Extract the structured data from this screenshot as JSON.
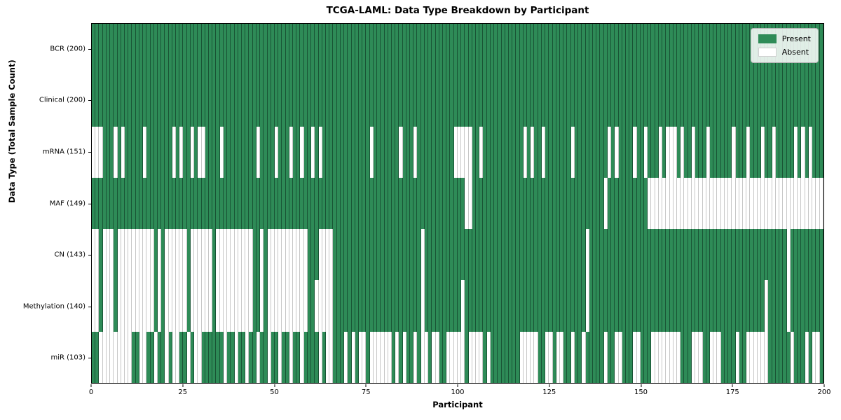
{
  "title": "TCGA-LAML: Data Type Breakdown by Participant",
  "x_axis": {
    "label": "Participant",
    "min": 0,
    "max": 200,
    "ticks": [
      0,
      25,
      50,
      75,
      100,
      125,
      150,
      175,
      200
    ]
  },
  "y_axis": {
    "label": "Data Type (Total Sample Count)"
  },
  "legend": {
    "position": "upper right",
    "items": [
      {
        "label": "Present",
        "color": "#2e8b57"
      },
      {
        "label": "Absent",
        "color": "#ffffff"
      }
    ]
  },
  "colors": {
    "present": "#2e8b57",
    "absent": "#ffffff",
    "cell_edge_on_green": "rgba(10,40,25,0.55)",
    "cell_edge_on_white": "rgba(0,0,0,0.22)",
    "row_separator": "#000000",
    "plot_border": "#000000"
  },
  "chart_data": {
    "type": "heatmap",
    "value_meaning": {
      "1": "Present",
      "0": "Absent"
    },
    "n_participants": 200,
    "x_range": [
      0,
      200
    ],
    "grid": "row separators only",
    "legend_position": "upper right",
    "rows": [
      {
        "label": "BCR (200)",
        "data_type": "BCR",
        "present_count": 200,
        "absent_count": 0,
        "absent_cols": []
      },
      {
        "label": "Clinical (200)",
        "data_type": "Clinical",
        "present_count": 200,
        "absent_count": 0,
        "absent_cols": []
      },
      {
        "label": "mRNA (151)",
        "data_type": "mRNA",
        "present_count": 151,
        "absent_count": 49,
        "absent_cols": [
          0,
          1,
          2,
          6,
          8,
          14,
          22,
          24,
          27,
          29,
          30,
          35,
          45,
          50,
          54,
          57,
          60,
          62,
          76,
          84,
          88,
          99,
          100,
          101,
          102,
          103,
          106,
          118,
          120,
          123,
          131,
          141,
          143,
          148,
          151,
          155,
          157,
          158,
          159,
          161,
          164,
          168,
          175,
          179,
          183,
          186,
          192,
          194,
          196
        ]
      },
      {
        "label": "MAF (149)",
        "data_type": "MAF",
        "present_count": 149,
        "absent_count": 51,
        "absent_cols": [
          102,
          103,
          140,
          152,
          153,
          154,
          155,
          156,
          157,
          158,
          159,
          160,
          161,
          162,
          163,
          164,
          165,
          166,
          167,
          168,
          169,
          170,
          171,
          172,
          173,
          174,
          175,
          176,
          177,
          178,
          179,
          180,
          181,
          182,
          183,
          184,
          185,
          186,
          187,
          188,
          189,
          190,
          191,
          192,
          193,
          194,
          195,
          196,
          197,
          198,
          199
        ]
      },
      {
        "label": "CN (143)",
        "data_type": "CN",
        "present_count": 143,
        "absent_count": 57,
        "absent_cols": [
          0,
          1,
          3,
          4,
          5,
          7,
          8,
          9,
          10,
          11,
          12,
          13,
          14,
          15,
          16,
          18,
          20,
          21,
          22,
          23,
          24,
          25,
          27,
          28,
          29,
          30,
          31,
          32,
          34,
          35,
          36,
          37,
          38,
          39,
          40,
          41,
          42,
          43,
          46,
          48,
          49,
          50,
          51,
          52,
          53,
          54,
          55,
          56,
          57,
          58,
          62,
          63,
          64,
          65,
          90,
          135,
          190
        ]
      },
      {
        "label": "Methylation (140)",
        "data_type": "Methylation",
        "present_count": 140,
        "absent_count": 60,
        "absent_cols": [
          0,
          1,
          3,
          4,
          5,
          7,
          8,
          9,
          10,
          11,
          12,
          13,
          14,
          15,
          16,
          18,
          20,
          21,
          22,
          23,
          24,
          25,
          27,
          28,
          29,
          30,
          31,
          32,
          34,
          35,
          36,
          37,
          38,
          39,
          40,
          41,
          42,
          43,
          46,
          48,
          49,
          50,
          51,
          52,
          53,
          54,
          55,
          56,
          57,
          58,
          61,
          62,
          63,
          64,
          65,
          90,
          101,
          135,
          184,
          190
        ]
      },
      {
        "label": "miR (103)",
        "data_type": "miR",
        "present_count": 103,
        "absent_count": 97,
        "absent_cols": [
          2,
          3,
          4,
          5,
          6,
          7,
          8,
          9,
          10,
          13,
          14,
          17,
          20,
          22,
          23,
          26,
          28,
          29,
          36,
          39,
          42,
          45,
          48,
          51,
          54,
          57,
          62,
          64,
          65,
          69,
          71,
          73,
          74,
          76,
          77,
          78,
          79,
          80,
          81,
          83,
          85,
          88,
          90,
          91,
          93,
          94,
          97,
          98,
          99,
          100,
          101,
          103,
          104,
          105,
          106,
          108,
          117,
          118,
          119,
          120,
          121,
          124,
          125,
          127,
          128,
          131,
          134,
          140,
          143,
          144,
          148,
          149,
          153,
          154,
          155,
          156,
          157,
          158,
          159,
          160,
          164,
          165,
          166,
          169,
          170,
          171,
          176,
          179,
          180,
          181,
          182,
          183,
          184,
          191,
          195,
          197,
          198
        ]
      }
    ]
  }
}
